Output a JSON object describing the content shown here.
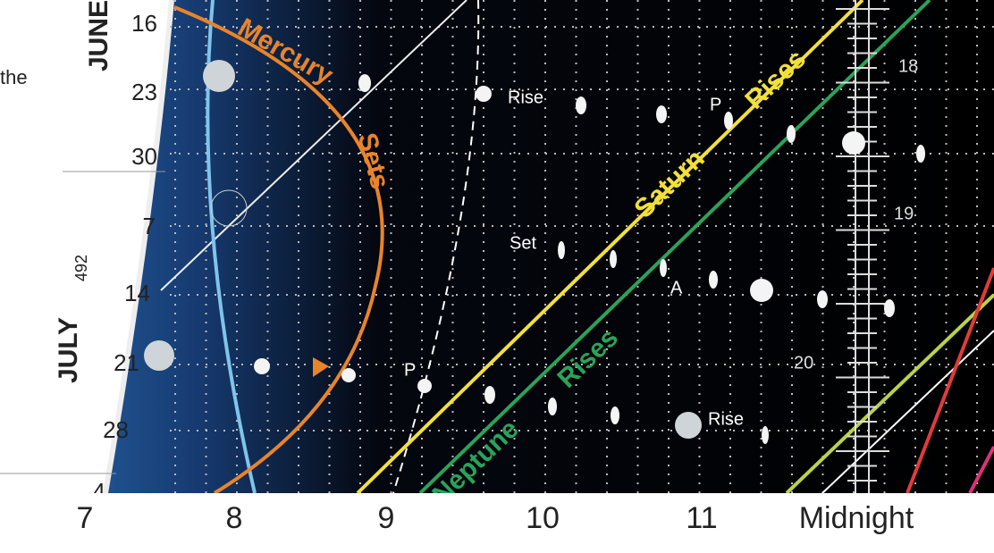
{
  "margin_text": "the",
  "months": [
    {
      "name": "JUNE",
      "days": [
        "16",
        "23",
        "30"
      ]
    },
    {
      "name": "JULY",
      "days": [
        "7",
        "14",
        "21",
        "28",
        "4"
      ]
    }
  ],
  "page_number": "492",
  "curve_labels": {
    "mercury": [
      "Mercury",
      "Sets"
    ],
    "saturn": [
      "Saturn",
      "Rises"
    ],
    "neptune": [
      "Neptune",
      "Rises"
    ]
  },
  "annotations": [
    "Rise",
    "Set",
    "P",
    "A",
    "P",
    "Rise"
  ],
  "right_scale": [
    "18",
    "19",
    "20"
  ],
  "hour_axis": [
    "7",
    "8",
    "9",
    "10",
    "11",
    "Midnight"
  ]
}
